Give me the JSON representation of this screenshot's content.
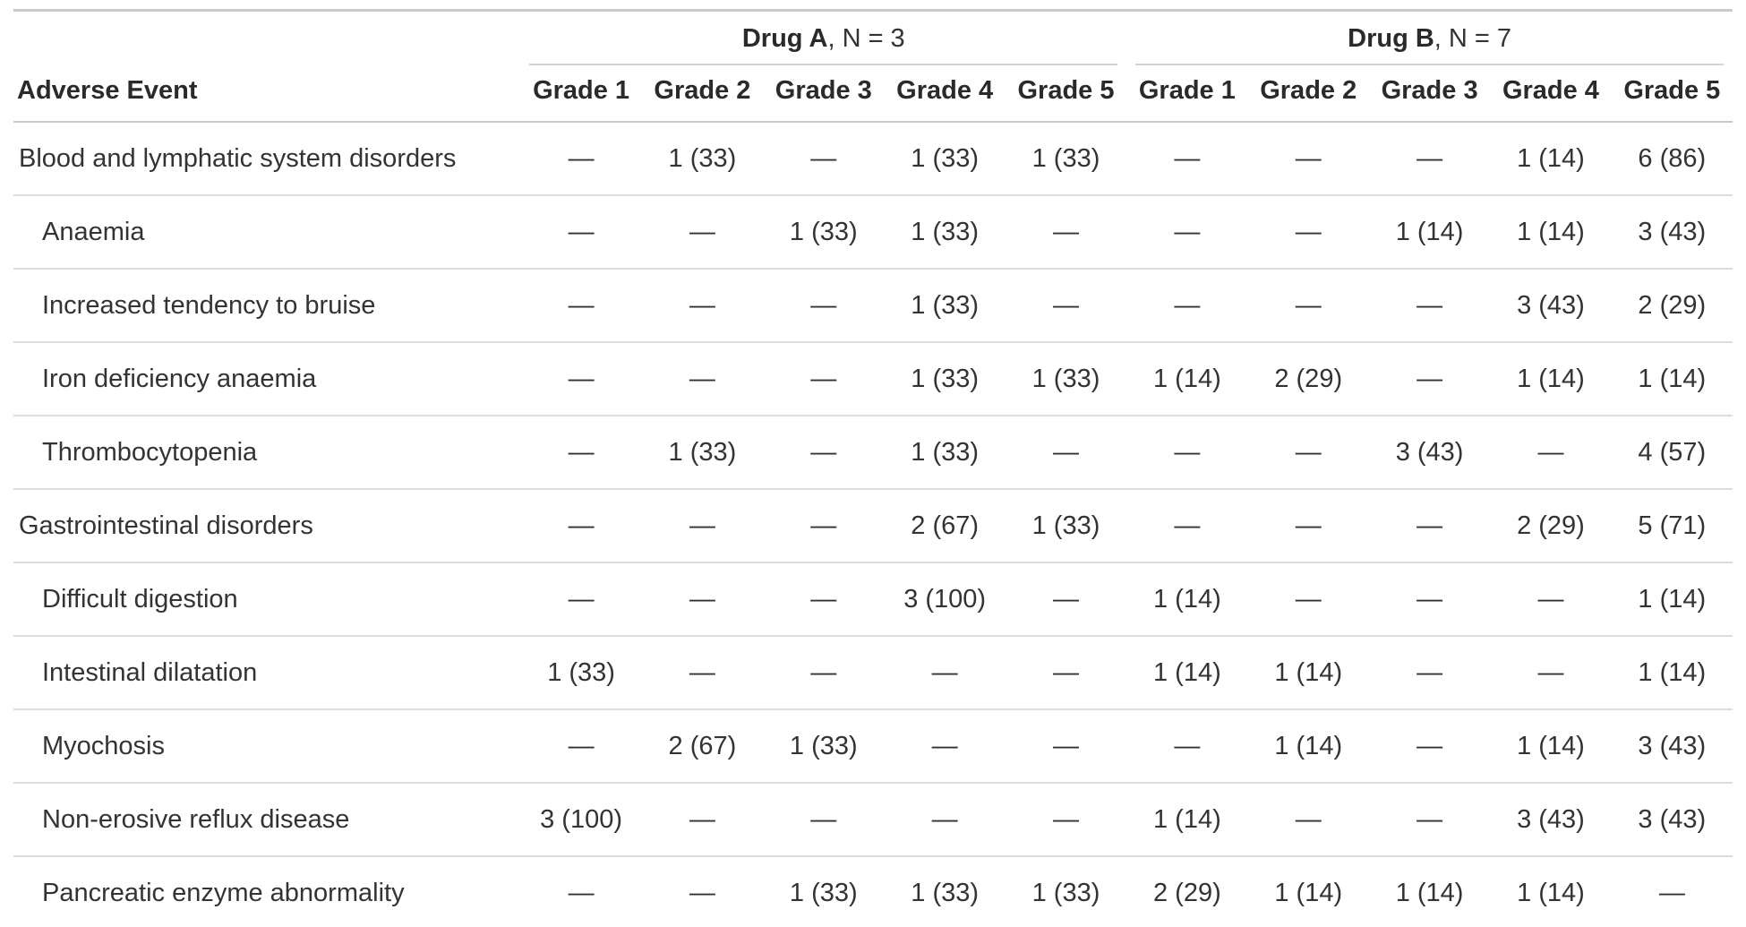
{
  "chart_data": {
    "type": "table",
    "title": "",
    "stub_header": "Adverse Event",
    "spanners": [
      {
        "name": "Drug A",
        "suffix": ", N = 3",
        "n": 3
      },
      {
        "name": "Drug B",
        "suffix": ", N = 7",
        "n": 7
      }
    ],
    "grade_labels": [
      "Grade 1",
      "Grade 2",
      "Grade 3",
      "Grade 4",
      "Grade 5"
    ],
    "empty_cell_symbol": "—",
    "rows": [
      {
        "label": "Blood and lymphatic system disorders",
        "indent": false,
        "values": [
          "—",
          "1 (33)",
          "—",
          "1 (33)",
          "1 (33)",
          "—",
          "—",
          "—",
          "1 (14)",
          "6 (86)"
        ]
      },
      {
        "label": "Anaemia",
        "indent": true,
        "values": [
          "—",
          "—",
          "1 (33)",
          "1 (33)",
          "—",
          "—",
          "—",
          "1 (14)",
          "1 (14)",
          "3 (43)"
        ]
      },
      {
        "label": "Increased tendency to bruise",
        "indent": true,
        "values": [
          "—",
          "—",
          "—",
          "1 (33)",
          "—",
          "—",
          "—",
          "—",
          "3 (43)",
          "2 (29)"
        ]
      },
      {
        "label": "Iron deficiency anaemia",
        "indent": true,
        "values": [
          "—",
          "—",
          "—",
          "1 (33)",
          "1 (33)",
          "1 (14)",
          "2 (29)",
          "—",
          "1 (14)",
          "1 (14)"
        ]
      },
      {
        "label": "Thrombocytopenia",
        "indent": true,
        "values": [
          "—",
          "1 (33)",
          "—",
          "1 (33)",
          "—",
          "—",
          "—",
          "3 (43)",
          "—",
          "4 (57)"
        ]
      },
      {
        "label": "Gastrointestinal disorders",
        "indent": false,
        "values": [
          "—",
          "—",
          "—",
          "2 (67)",
          "1 (33)",
          "—",
          "—",
          "—",
          "2 (29)",
          "5 (71)"
        ]
      },
      {
        "label": "Difficult digestion",
        "indent": true,
        "values": [
          "—",
          "—",
          "—",
          "3 (100)",
          "—",
          "1 (14)",
          "—",
          "—",
          "—",
          "1 (14)"
        ]
      },
      {
        "label": "Intestinal dilatation",
        "indent": true,
        "values": [
          "1 (33)",
          "—",
          "—",
          "—",
          "—",
          "1 (14)",
          "1 (14)",
          "—",
          "—",
          "1 (14)"
        ]
      },
      {
        "label": "Myochosis",
        "indent": true,
        "values": [
          "—",
          "2 (67)",
          "1 (33)",
          "—",
          "—",
          "—",
          "1 (14)",
          "—",
          "1 (14)",
          "3 (43)"
        ]
      },
      {
        "label": "Non-erosive reflux disease",
        "indent": true,
        "values": [
          "3 (100)",
          "—",
          "—",
          "—",
          "—",
          "1 (14)",
          "—",
          "—",
          "3 (43)",
          "3 (43)"
        ]
      },
      {
        "label": "Pancreatic enzyme abnormality",
        "indent": true,
        "values": [
          "—",
          "—",
          "1 (33)",
          "1 (33)",
          "1 (33)",
          "2 (29)",
          "1 (14)",
          "1 (14)",
          "1 (14)",
          "—"
        ]
      }
    ]
  },
  "colors": {
    "text": "#333333",
    "header_text": "#2a2a2a",
    "table_edge_border": "#c9c9c9",
    "spanner_underline": "#d3d3d3",
    "row_separator": "#dcdcdc",
    "background": "#ffffff"
  }
}
